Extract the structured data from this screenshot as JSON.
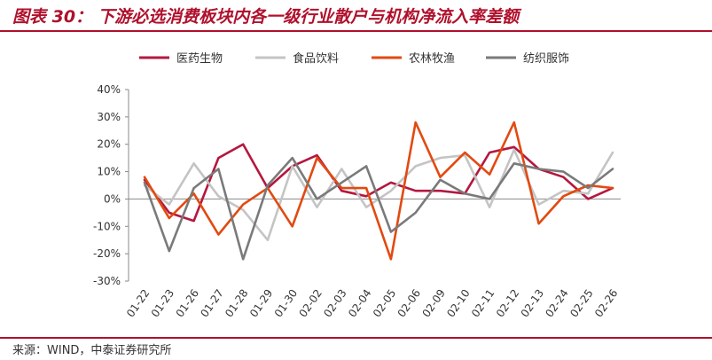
{
  "header": {
    "title_number": "图表 30：",
    "title_text": "下游必选消费板块内各一级行业散户与机构净流入率差额"
  },
  "footer": {
    "source": "来源：WIND，中泰证券研究所"
  },
  "chart_data": {
    "type": "line",
    "categories": [
      "01-22",
      "01-23",
      "01-26",
      "01-27",
      "01-28",
      "01-29",
      "01-30",
      "02-02",
      "02-03",
      "02-04",
      "02-05",
      "02-06",
      "02-09",
      "02-10",
      "02-11",
      "02-12",
      "02-13",
      "02-24",
      "02-25",
      "02-26"
    ],
    "y_ticks": [
      "40%",
      "30%",
      "20%",
      "10%",
      "0%",
      "-10%",
      "-20%",
      "-30%"
    ],
    "ylim": [
      -30,
      40
    ],
    "y_unit": "%",
    "grid": false,
    "legend_position": "top",
    "series": [
      {
        "name": "医药生物",
        "color": "#b5173f",
        "values": [
          7,
          -5,
          -8,
          15,
          20,
          4,
          12,
          16,
          3,
          1,
          6,
          3,
          3,
          2,
          17,
          19,
          11,
          8,
          0,
          4
        ]
      },
      {
        "name": "食品饮料",
        "color": "#c4c4c4",
        "values": [
          5,
          -2,
          13,
          1,
          -4,
          -15,
          12,
          -3,
          11,
          -3,
          3,
          12,
          15,
          16,
          -3,
          18,
          -2,
          3,
          2,
          17
        ]
      },
      {
        "name": "农林牧渔",
        "color": "#e24a10",
        "values": [
          8,
          -7,
          2,
          -13,
          -2,
          4,
          -10,
          15,
          4,
          4,
          -22,
          28,
          8,
          17,
          9,
          28,
          -9,
          1,
          5,
          4
        ]
      },
      {
        "name": "纺织服饰",
        "color": "#7a7a7a",
        "values": [
          6,
          -19,
          4,
          11,
          -22,
          5,
          15,
          0,
          6,
          12,
          -12,
          -5,
          7,
          2,
          0,
          13,
          11,
          10,
          4,
          11
        ]
      }
    ]
  }
}
